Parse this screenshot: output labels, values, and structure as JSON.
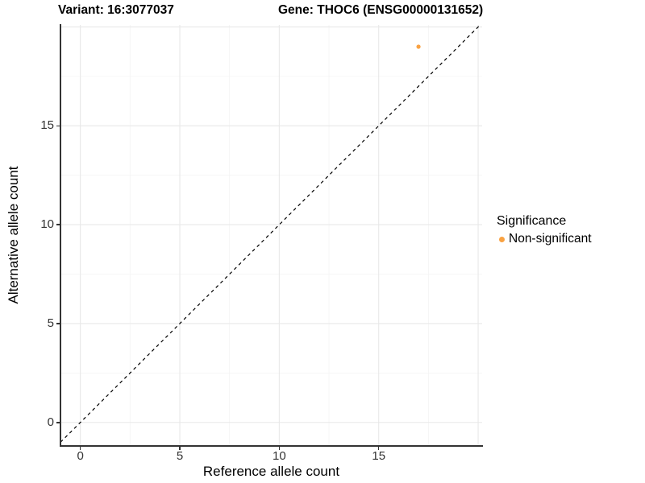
{
  "legend": {
    "title": "Significance",
    "items": [
      {
        "label": "Non-significant",
        "color": "#F9A242"
      }
    ]
  },
  "chart_data": {
    "type": "scatter",
    "title_left": "Variant: 16:3077037",
    "title_right": "Gene: THOC6 (ENSG00000131652)",
    "xlabel": "Reference allele count",
    "ylabel": "Alternative allele count",
    "xlim": [
      -1.0,
      20.2
    ],
    "ylim": [
      -1.15,
      20.1
    ],
    "x_ticks": {
      "values": [
        0,
        5,
        10,
        15
      ],
      "labels": [
        "0",
        "5",
        "10",
        "15"
      ]
    },
    "y_ticks": {
      "values": [
        0,
        5,
        10,
        15
      ],
      "labels": [
        "0",
        "5",
        "10",
        "15"
      ]
    },
    "grid": {
      "major": [
        0,
        5,
        10,
        15,
        20
      ],
      "minor": [
        2.5,
        7.5,
        12.5,
        17.5
      ],
      "major_color": "#e8e8e8",
      "minor_color": "#f4f4f4"
    },
    "identity_line": {
      "style": "dashed",
      "color": "#000000",
      "slope": 1,
      "intercept": 0
    },
    "series": [
      {
        "name": "Non-significant",
        "color": "#F9A242",
        "points": [
          [
            17,
            19
          ]
        ]
      }
    ],
    "legend_position": "right",
    "background": "#ffffff"
  }
}
